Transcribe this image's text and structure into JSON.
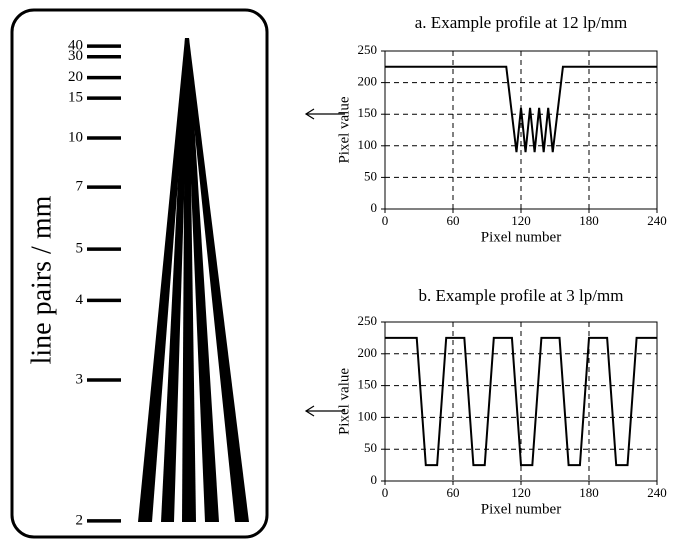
{
  "pattern": {
    "axis_label": "line pairs / mm",
    "ticks": [
      2,
      3,
      4,
      5,
      7,
      10,
      15,
      20,
      30,
      40
    ]
  },
  "chart_data": [
    {
      "type": "line",
      "title": "a.  Example profile at 12 lp/mm",
      "xlabel": "Pixel number",
      "ylabel": "Pixel value",
      "x": [
        0,
        107,
        116,
        120,
        124,
        128,
        132,
        136,
        140,
        144,
        148,
        157,
        240
      ],
      "values": [
        225,
        225,
        90,
        160,
        90,
        160,
        90,
        160,
        90,
        160,
        90,
        225,
        225
      ],
      "color": "#000000",
      "xlim": [
        0,
        240
      ],
      "xticks": [
        0,
        60,
        120,
        180,
        240
      ],
      "ylim": [
        0,
        250
      ],
      "yticks": [
        0,
        50,
        100,
        150,
        200,
        250
      ],
      "grid": true
    },
    {
      "type": "line",
      "title": "b.  Example profile at 3 lp/mm",
      "xlabel": "Pixel number",
      "ylabel": "Pixel value",
      "x": [
        0,
        28,
        36,
        46,
        54,
        70,
        78,
        88,
        96,
        112,
        120,
        130,
        138,
        154,
        162,
        172,
        180,
        196,
        204,
        214,
        222,
        240
      ],
      "values": [
        225,
        225,
        25,
        25,
        225,
        225,
        25,
        25,
        225,
        225,
        25,
        25,
        225,
        225,
        25,
        25,
        225,
        225,
        25,
        25,
        225,
        225
      ],
      "color": "#000000",
      "xlim": [
        0,
        240
      ],
      "xticks": [
        0,
        60,
        120,
        180,
        240
      ],
      "ylim": [
        0,
        250
      ],
      "yticks": [
        0,
        50,
        100,
        150,
        200,
        250
      ],
      "grid": true
    }
  ]
}
